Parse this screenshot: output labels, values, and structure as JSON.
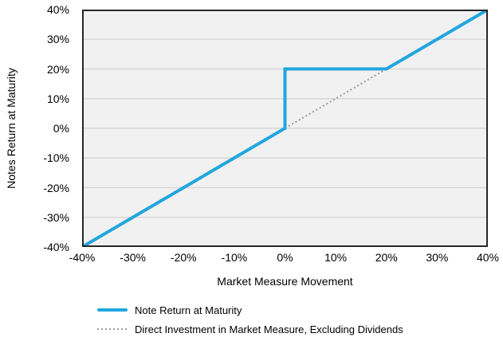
{
  "chart_data": {
    "type": "line",
    "title": "",
    "xlabel": "Market Measure Movement",
    "ylabel": "Notes Return at Maturity",
    "xlim": [
      -40,
      40
    ],
    "ylim": [
      -40,
      40
    ],
    "x_tick_values": [
      -40,
      -30,
      -20,
      -10,
      0,
      10,
      20,
      30,
      40
    ],
    "x_tick_labels": [
      "-40%",
      "-30%",
      "-20%",
      "-10%",
      "0%",
      "10%",
      "20%",
      "30%",
      "40%"
    ],
    "y_tick_values": [
      40,
      30,
      20,
      10,
      0,
      -10,
      -20,
      -30,
      -40
    ],
    "y_tick_labels": [
      "40%",
      "30%",
      "20%",
      "10%",
      "0%",
      "-10%",
      "-20%",
      "-30%",
      "-40%"
    ],
    "grid": "horizontal",
    "legend_position": "bottom-left",
    "series": [
      {
        "name": "Note Return at Maturity",
        "type": "line",
        "style": "solid",
        "color": "#21a6de",
        "stroke_width": 4,
        "points": [
          [
            -40,
            -40
          ],
          [
            0,
            0
          ],
          [
            0,
            20
          ],
          [
            20,
            20
          ],
          [
            40,
            40
          ]
        ]
      },
      {
        "name": "Direct Investment in Market Measure, Excluding Dividends",
        "type": "line",
        "style": "dotted",
        "color": "#9b9b9b",
        "stroke_width": 2,
        "points": [
          [
            -40,
            -40
          ],
          [
            40,
            40
          ]
        ]
      }
    ]
  },
  "colors": {
    "plot_background": "#f1f1f1",
    "gridline": "#d8d8d8",
    "plot_border": "#262626",
    "text": "#000000"
  }
}
